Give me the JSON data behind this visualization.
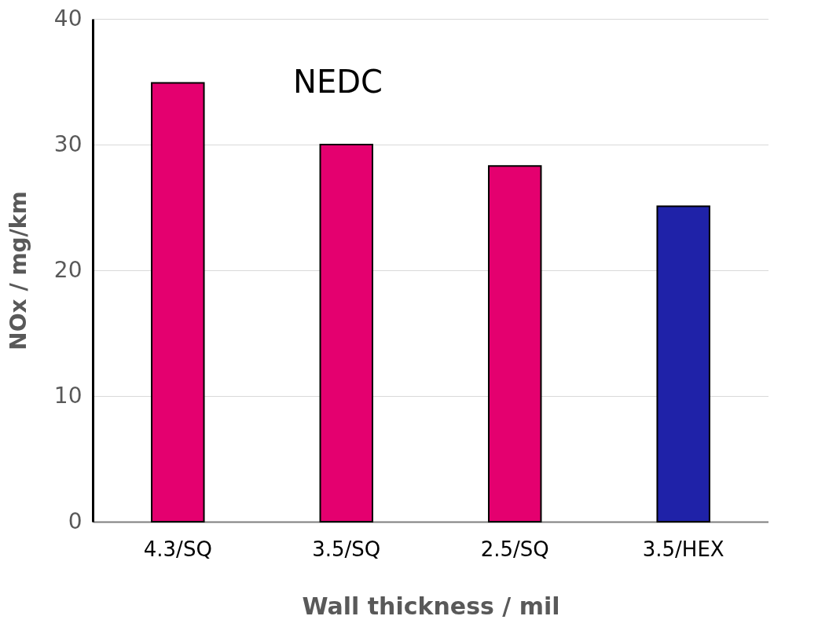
{
  "chart_data": {
    "type": "bar",
    "xlabel": "Wall thickness / mil",
    "ylabel": "NOx / mg/km",
    "categories": [
      "4.3/SQ",
      "3.5/SQ",
      "2.5/SQ",
      "3.5/HEX"
    ],
    "values": [
      34.9,
      30.0,
      28.3,
      25.1
    ],
    "colors": [
      "#e4006f",
      "#e4006f",
      "#e4006f",
      "#1f22a8"
    ],
    "ylim": [
      0,
      40
    ],
    "yticks": [
      0,
      10,
      20,
      30,
      40
    ],
    "grid": "y",
    "annotations": [
      "NEDC"
    ]
  }
}
